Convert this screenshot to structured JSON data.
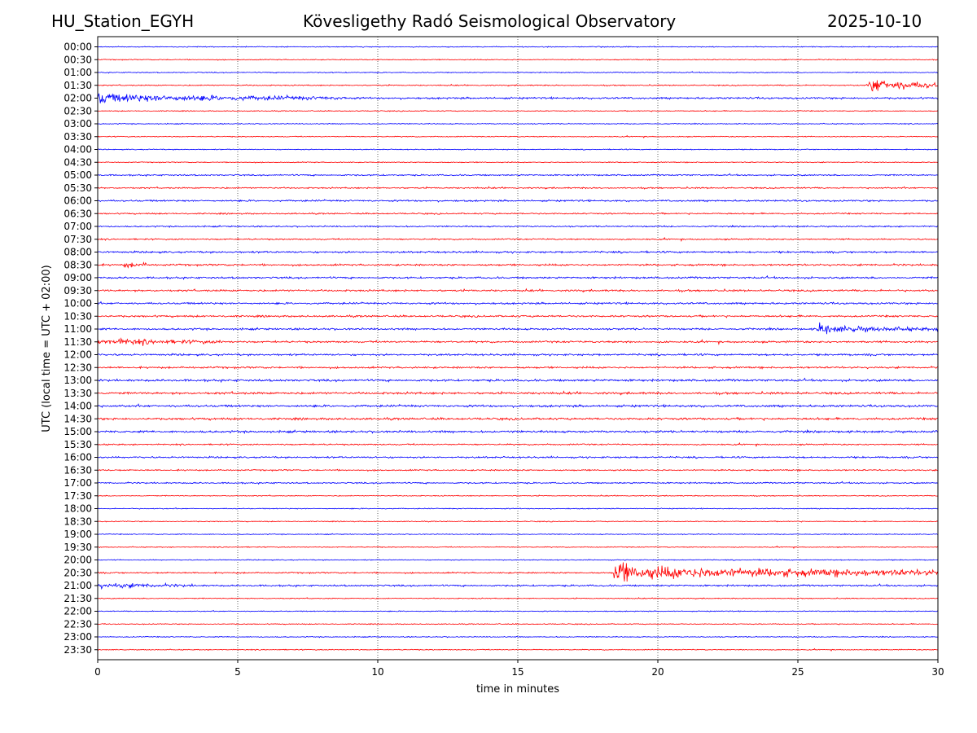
{
  "header": {
    "station": "HU_Station_EGYH",
    "title": "Kövesligethy Radó Seismological Observatory",
    "date": "2025-10-10"
  },
  "chart_data": {
    "type": "line",
    "title": "Kövesligethy Radó Seismological Observatory",
    "xlabel": "time in minutes",
    "ylabel": "UTC (local time = UTC + 02:00)",
    "xlim": [
      0,
      30
    ],
    "xticks": [
      0,
      5,
      10,
      15,
      20,
      25,
      30
    ],
    "grid": "vertical dotted lines at x ticks",
    "row_colors": [
      "#0000ff",
      "#ff0000"
    ],
    "rows": [
      "00:00",
      "00:30",
      "01:00",
      "01:30",
      "02:00",
      "02:30",
      "03:00",
      "03:30",
      "04:00",
      "04:30",
      "05:00",
      "05:30",
      "06:00",
      "06:30",
      "07:00",
      "07:30",
      "08:00",
      "08:30",
      "09:00",
      "09:30",
      "10:00",
      "10:30",
      "11:00",
      "11:30",
      "12:00",
      "12:30",
      "13:00",
      "13:30",
      "14:00",
      "14:30",
      "15:00",
      "15:30",
      "16:00",
      "16:30",
      "17:00",
      "17:30",
      "18:00",
      "18:30",
      "19:00",
      "19:30",
      "20:00",
      "20:30",
      "21:00",
      "21:30",
      "22:00",
      "22:30",
      "23:00",
      "23:30"
    ],
    "noise_amplitude": [
      1,
      1,
      1,
      1.2,
      2,
      1,
      1,
      1,
      1,
      1,
      1.5,
      1.5,
      1.8,
      1.5,
      1.5,
      1.5,
      2,
      2,
      2,
      2,
      2,
      2,
      2,
      2,
      2,
      2,
      2.3,
      2.3,
      2.3,
      2.3,
      2.3,
      1.5,
      1.8,
      1.5,
      1.5,
      1,
      1,
      1,
      1,
      1,
      1,
      1.5,
      1.8,
      1,
      1,
      1,
      1,
      1
    ],
    "events": [
      {
        "row": "01:30",
        "start_min": 27.5,
        "end_min": 30,
        "peak_amplitude": 20,
        "sustained_amplitude": 8
      },
      {
        "row": "02:00",
        "start_min": 0,
        "end_min": 9,
        "peak_amplitude": 14,
        "sustained_amplitude": 6
      },
      {
        "row": "08:30",
        "start_min": 0.9,
        "end_min": 1.8,
        "peak_amplitude": 6,
        "sustained_amplitude": 4
      },
      {
        "row": "11:00",
        "start_min": 25.6,
        "end_min": 30,
        "peak_amplitude": 14,
        "sustained_amplitude": 5
      },
      {
        "row": "11:30",
        "start_min": 0,
        "end_min": 4.5,
        "peak_amplitude": 8,
        "sustained_amplitude": 5
      },
      {
        "row": "20:30",
        "start_min": 18.4,
        "end_min": 30,
        "peak_amplitude": 30,
        "sustained_amplitude": 10
      },
      {
        "row": "21:00",
        "start_min": 0,
        "end_min": 3.5,
        "peak_amplitude": 5,
        "sustained_amplitude": 4
      }
    ]
  }
}
